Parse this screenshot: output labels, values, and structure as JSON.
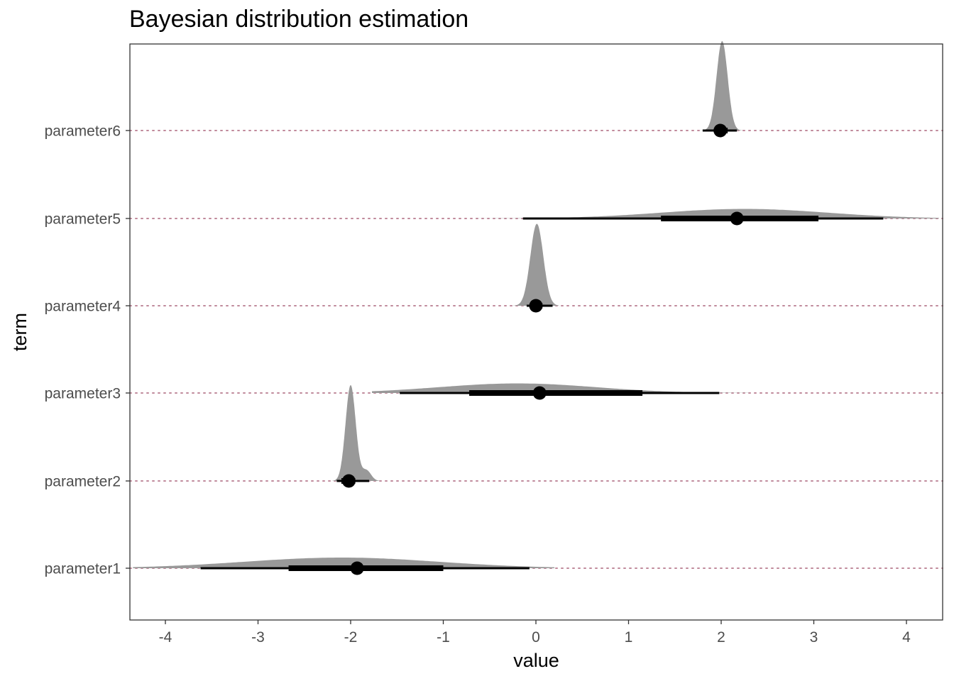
{
  "chart_data": {
    "type": "halfeye",
    "title": "Bayesian distribution estimation",
    "xlabel": "value",
    "ylabel": "term",
    "xlim": [
      -4.4,
      4.4
    ],
    "x_ticks": [
      -4,
      -3,
      -2,
      -1,
      0,
      1,
      2,
      3,
      4
    ],
    "grid": "dotted horizontal reference lines at each term",
    "colors": {
      "density": "#999999",
      "interval": "#000000",
      "reference_line": "#c08a9b",
      "panel_border": "#333333"
    },
    "terms": [
      {
        "name": "parameter1",
        "point": -1.93,
        "interval_66": [
          -2.67,
          -1.0
        ],
        "interval_95": [
          -3.62,
          -0.07
        ],
        "range": [
          -4.35,
          0.2
        ],
        "density": "normal",
        "mean": -2.1,
        "sd": 1.05,
        "peak_height": 0.1
      },
      {
        "name": "parameter2",
        "point": -2.02,
        "interval_66": [
          -2.1,
          -1.95
        ],
        "interval_95": [
          -2.15,
          -1.8
        ],
        "range": [
          -2.2,
          -1.68
        ],
        "density": "skewed",
        "mean": -2.0,
        "sd": 0.055,
        "peak_height": 0.9,
        "skew_bump": {
          "mean": -1.83,
          "sd": 0.05,
          "weight": 0.1
        }
      },
      {
        "name": "parameter3",
        "point": 0.04,
        "interval_66": [
          -0.72,
          1.15
        ],
        "interval_95": [
          -1.47,
          1.98
        ],
        "range": [
          -1.77,
          2.3
        ],
        "density": "normal",
        "mean": -0.2,
        "sd": 0.85,
        "peak_height": 0.09
      },
      {
        "name": "parameter4",
        "point": 0.0,
        "interval_66": [
          -0.06,
          0.07
        ],
        "interval_95": [
          -0.1,
          0.18
        ],
        "range": [
          -0.25,
          0.25
        ],
        "density": "normal",
        "mean": 0.01,
        "sd": 0.07,
        "peak_height": 0.77
      },
      {
        "name": "parameter5",
        "point": 2.17,
        "interval_66": [
          1.35,
          3.05
        ],
        "interval_95": [
          -0.14,
          3.75
        ],
        "range": [
          -0.65,
          4.35
        ],
        "density": "normal",
        "mean": 2.25,
        "sd": 0.9,
        "peak_height": 0.09
      },
      {
        "name": "parameter6",
        "point": 1.99,
        "interval_66": [
          1.93,
          2.07
        ],
        "interval_95": [
          1.8,
          2.17
        ],
        "range": [
          1.75,
          2.23
        ],
        "density": "normal",
        "mean": 2.01,
        "sd": 0.06,
        "peak_height": 0.84
      }
    ]
  }
}
